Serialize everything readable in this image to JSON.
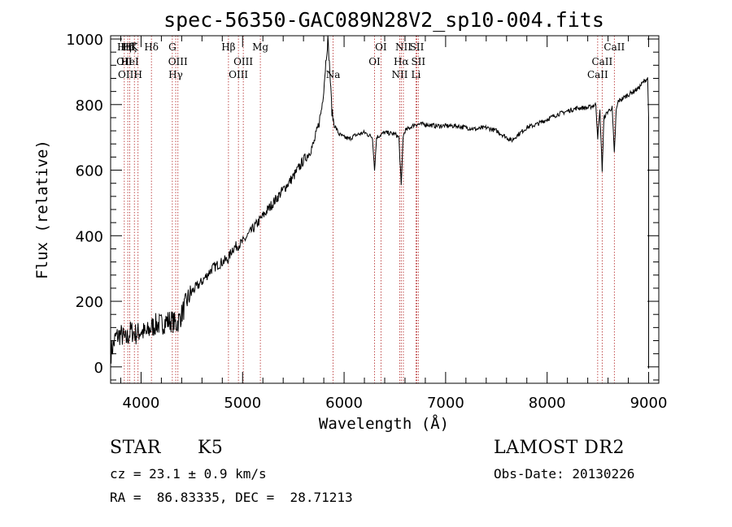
{
  "chart_data": {
    "type": "line",
    "title": "spec-56350-GAC089N28V2_sp10-004.fits",
    "xlabel": "Wavelength (Å)",
    "ylabel": "Flux (relative)",
    "xlim": [
      3700,
      9100
    ],
    "ylim": [
      -50,
      1010
    ],
    "x_ticks": [
      4000,
      5000,
      6000,
      7000,
      8000,
      9000
    ],
    "y_ticks": [
      0,
      200,
      400,
      600,
      800,
      1000
    ],
    "grid": false,
    "series": [
      {
        "x": [
          3700,
          3750,
          3800,
          3850,
          3900,
          3950,
          4000,
          4050,
          4100,
          4150,
          4200,
          4250,
          4300,
          4350,
          4400,
          4450,
          4500,
          4600,
          4700,
          4800,
          4860,
          4900,
          5000,
          5100,
          5200,
          5300,
          5400,
          5500,
          5600,
          5650,
          5700,
          5750,
          5780,
          5800,
          5820,
          5840,
          5860,
          5880,
          5900,
          5950,
          6000,
          6050,
          6100,
          6200,
          6280,
          6300,
          6320,
          6400,
          6500,
          6540,
          6563,
          6580,
          6600,
          6700,
          6800,
          6900,
          7000,
          7100,
          7200,
          7300,
          7400,
          7500,
          7600,
          7650,
          7700,
          7800,
          7900,
          8000,
          8100,
          8200,
          8300,
          8400,
          8480,
          8498,
          8520,
          8542,
          8560,
          8600,
          8640,
          8662,
          8680,
          8700,
          8800,
          8900,
          8950,
          8990,
          9000
        ],
        "values": [
          40,
          90,
          100,
          80,
          110,
          100,
          110,
          100,
          120,
          130,
          130,
          140,
          140,
          130,
          160,
          200,
          230,
          260,
          300,
          320,
          330,
          360,
          380,
          420,
          460,
          500,
          540,
          580,
          630,
          650,
          680,
          740,
          790,
          850,
          930,
          1000,
          900,
          780,
          740,
          710,
          700,
          695,
          705,
          715,
          700,
          600,
          700,
          715,
          710,
          700,
          550,
          700,
          720,
          740,
          740,
          735,
          735,
          735,
          730,
          725,
          730,
          720,
          700,
          690,
          705,
          730,
          740,
          755,
          770,
          780,
          790,
          790,
          800,
          700,
          780,
          600,
          760,
          780,
          790,
          650,
          780,
          810,
          830,
          850,
          870,
          880,
          760
        ]
      }
    ],
    "line_marks": [
      {
        "wavelength": 3835,
        "labels": [
          "Hη"
        ]
      },
      {
        "wavelength": 3869,
        "labels": [
          "",
          "",
          "OIII"
        ]
      },
      {
        "wavelength": 3889,
        "labels": [
          "Hζ"
        ]
      },
      {
        "wavelength": 3934,
        "labels": [
          "K"
        ]
      },
      {
        "wavelength": 3970,
        "labels": [
          "",
          "",
          "H"
        ]
      },
      {
        "wavelength": 4102,
        "labels": [
          "Hδ"
        ]
      },
      {
        "wavelength": 4308,
        "labels": [
          "G"
        ]
      },
      {
        "wavelength": 4341,
        "labels": [
          "",
          "",
          "Hγ"
        ]
      },
      {
        "wavelength": 4363,
        "labels": [
          "",
          "OIII"
        ]
      },
      {
        "wavelength": 4861,
        "labels": [
          "Hβ"
        ]
      },
      {
        "wavelength": 4959,
        "labels": [
          "",
          "",
          "OIII"
        ]
      },
      {
        "wavelength": 5007,
        "labels": [
          "",
          "OIII"
        ]
      },
      {
        "wavelength": 5175,
        "labels": [
          "Mg"
        ]
      },
      {
        "wavelength": 5892,
        "labels": [
          "",
          "",
          "Na"
        ]
      },
      {
        "wavelength": 6300,
        "labels": [
          "",
          "OI"
        ]
      },
      {
        "wavelength": 6363,
        "labels": [
          "OI"
        ]
      },
      {
        "wavelength": 6548,
        "labels": [
          "",
          "",
          "NII"
        ]
      },
      {
        "wavelength": 6563,
        "labels": [
          "",
          "Hα"
        ]
      },
      {
        "wavelength": 6584,
        "labels": [
          "NII"
        ]
      },
      {
        "wavelength": 6708,
        "labels": [
          "",
          "",
          "Li"
        ]
      },
      {
        "wavelength": 6717,
        "labels": [
          "SII"
        ]
      },
      {
        "wavelength": 6731,
        "labels": [
          "",
          "SII"
        ]
      },
      {
        "wavelength": 8498,
        "labels": [
          "",
          "",
          "CaII"
        ]
      },
      {
        "wavelength": 8542,
        "labels": [
          "",
          "CaII"
        ]
      },
      {
        "wavelength": 8662,
        "labels": [
          "CaII"
        ]
      }
    ],
    "extra_labels": [
      {
        "wavelength": 3835,
        "row": 1,
        "text": "OII"
      },
      {
        "wavelength": 3869,
        "row": 0,
        "text": "Hδ"
      },
      {
        "wavelength": 3889,
        "row": 1,
        "text": "HeI"
      }
    ]
  },
  "info": {
    "object_class": "STAR",
    "subclass": "K5",
    "redshift": "cz = 23.1 ± 0.9 km/s",
    "coords": "RA =  86.83335, DEC =  28.71213",
    "survey": "LAMOST DR2",
    "obs_date": "Obs-Date: 20130226"
  }
}
